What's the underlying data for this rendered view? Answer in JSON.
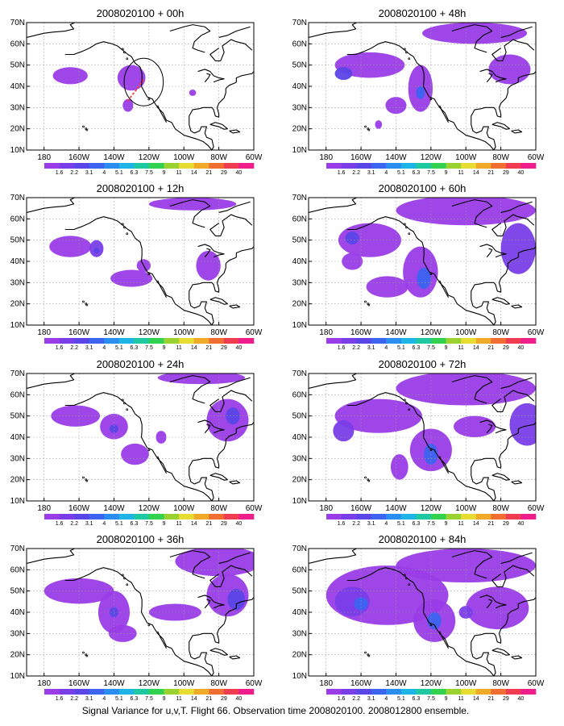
{
  "figure": {
    "caption": "Signal Variance for u,v,T. Flight 66. Observation time 2008020100. 2008012800 ensemble.",
    "lon_ticks": [
      "180",
      "160W",
      "140W",
      "120W",
      "100W",
      "80W",
      "60W"
    ],
    "lat_ticks": [
      "10N",
      "20N",
      "30N",
      "40N",
      "50N",
      "60N",
      "70N"
    ],
    "colorbar": {
      "labels": [
        "1.6",
        "2.2",
        "3.1",
        "4",
        "5.1",
        "6.3",
        "7.5",
        "9",
        "11",
        "14",
        "21",
        "29",
        "40"
      ],
      "colors": [
        "#9a3ce8",
        "#7a3ee8",
        "#5a46e8",
        "#3c64f0",
        "#2a8ef0",
        "#1eb4e6",
        "#1ec8a0",
        "#32d250",
        "#9ad232",
        "#e6dc32",
        "#f0aa28",
        "#f06e32",
        "#f03c50",
        "#f01e8c"
      ]
    },
    "colors": {
      "land_outline": "#000000",
      "grid": "#999999",
      "observation_circle": "#000000",
      "observation_track": "#ff3333"
    }
  },
  "panels": [
    {
      "title": "2008020100 + 00h",
      "blobs": [
        {
          "lon": -165,
          "lat": 45,
          "rx": 10,
          "ry": 4,
          "level": 0
        },
        {
          "lon": -130,
          "lat": 44,
          "rx": 8,
          "ry": 6,
          "level": 0
        },
        {
          "lon": -132,
          "lat": 31,
          "rx": 3,
          "ry": 3,
          "level": 0
        },
        {
          "lon": -95,
          "lat": 37,
          "rx": 2,
          "ry": 1.5,
          "level": 0
        }
      ],
      "observation": {
        "lon": -123,
        "lat": 42,
        "radius_deg": 7
      }
    },
    {
      "title": "2008020100 + 48h",
      "blobs": [
        {
          "lon": -155,
          "lat": 50,
          "rx": 20,
          "ry": 6,
          "level": 0
        },
        {
          "lon": -170,
          "lat": 46,
          "rx": 5,
          "ry": 3,
          "level": 2
        },
        {
          "lon": -126,
          "lat": 39,
          "rx": 7,
          "ry": 11,
          "level": 0
        },
        {
          "lon": -126,
          "lat": 37,
          "rx": 2.5,
          "ry": 3,
          "level": 3
        },
        {
          "lon": -140,
          "lat": 31,
          "rx": 6,
          "ry": 4,
          "level": 0
        },
        {
          "lon": -95,
          "lat": 65,
          "rx": 30,
          "ry": 5,
          "level": 0
        },
        {
          "lon": -75,
          "lat": 48,
          "rx": 12,
          "ry": 7,
          "level": 0
        },
        {
          "lon": -150,
          "lat": 22,
          "rx": 2,
          "ry": 2,
          "level": 0
        }
      ]
    },
    {
      "title": "2008020100 + 12h",
      "blobs": [
        {
          "lon": -165,
          "lat": 47,
          "rx": 12,
          "ry": 5,
          "level": 0
        },
        {
          "lon": -150,
          "lat": 46,
          "rx": 4,
          "ry": 4,
          "level": 1
        },
        {
          "lon": -150,
          "lat": 45,
          "rx": 1.5,
          "ry": 1.5,
          "level": 2
        },
        {
          "lon": -130,
          "lat": 32,
          "rx": 12,
          "ry": 4,
          "level": 0
        },
        {
          "lon": -123,
          "lat": 38,
          "rx": 4,
          "ry": 3,
          "level": 0
        },
        {
          "lon": -86,
          "lat": 38,
          "rx": 7,
          "ry": 7,
          "level": 0
        },
        {
          "lon": -95,
          "lat": 67,
          "rx": 25,
          "ry": 3,
          "level": 0
        }
      ]
    },
    {
      "title": "2008020100 + 60h",
      "blobs": [
        {
          "lon": -155,
          "lat": 50,
          "rx": 18,
          "ry": 8,
          "level": 0
        },
        {
          "lon": -165,
          "lat": 51,
          "rx": 4,
          "ry": 3,
          "level": 2
        },
        {
          "lon": -165,
          "lat": 40,
          "rx": 6,
          "ry": 4,
          "level": 0
        },
        {
          "lon": -126,
          "lat": 35,
          "rx": 10,
          "ry": 12,
          "level": 0
        },
        {
          "lon": -124,
          "lat": 32,
          "rx": 4,
          "ry": 5,
          "level": 3
        },
        {
          "lon": -145,
          "lat": 28,
          "rx": 12,
          "ry": 5,
          "level": 0
        },
        {
          "lon": -100,
          "lat": 64,
          "rx": 40,
          "ry": 7,
          "level": 0
        },
        {
          "lon": -70,
          "lat": 46,
          "rx": 10,
          "ry": 12,
          "level": 1
        }
      ]
    },
    {
      "title": "2008020100 + 24h",
      "blobs": [
        {
          "lon": -162,
          "lat": 50,
          "rx": 14,
          "ry": 5,
          "level": 0
        },
        {
          "lon": -140,
          "lat": 45,
          "rx": 8,
          "ry": 6,
          "level": 0
        },
        {
          "lon": -140,
          "lat": 44,
          "rx": 2.5,
          "ry": 2,
          "level": 2
        },
        {
          "lon": -128,
          "lat": 32,
          "rx": 8,
          "ry": 5,
          "level": 0
        },
        {
          "lon": -113,
          "lat": 40,
          "rx": 3,
          "ry": 3,
          "level": 0
        },
        {
          "lon": -75,
          "lat": 48,
          "rx": 12,
          "ry": 10,
          "level": 0
        },
        {
          "lon": -72,
          "lat": 50,
          "rx": 4,
          "ry": 4,
          "level": 2
        },
        {
          "lon": -90,
          "lat": 68,
          "rx": 25,
          "ry": 3,
          "level": 0
        }
      ]
    },
    {
      "title": "2008020100 + 72h",
      "blobs": [
        {
          "lon": -150,
          "lat": 50,
          "rx": 25,
          "ry": 8,
          "level": 0
        },
        {
          "lon": -170,
          "lat": 43,
          "rx": 6,
          "ry": 5,
          "level": 1
        },
        {
          "lon": -120,
          "lat": 34,
          "rx": 12,
          "ry": 10,
          "level": 0
        },
        {
          "lon": -120,
          "lat": 32,
          "rx": 4,
          "ry": 5,
          "level": 3
        },
        {
          "lon": -138,
          "lat": 26,
          "rx": 5,
          "ry": 6,
          "level": 0
        },
        {
          "lon": -100,
          "lat": 63,
          "rx": 40,
          "ry": 8,
          "level": 0
        },
        {
          "lon": -65,
          "lat": 46,
          "rx": 10,
          "ry": 10,
          "level": 1
        },
        {
          "lon": -95,
          "lat": 45,
          "rx": 12,
          "ry": 5,
          "level": 0
        }
      ]
    },
    {
      "title": "2008020100 + 36h",
      "blobs": [
        {
          "lon": -160,
          "lat": 50,
          "rx": 20,
          "ry": 6,
          "level": 0
        },
        {
          "lon": -140,
          "lat": 40,
          "rx": 9,
          "ry": 10,
          "level": 0
        },
        {
          "lon": -140,
          "lat": 40,
          "rx": 2.5,
          "ry": 2.5,
          "level": 2
        },
        {
          "lon": -135,
          "lat": 30,
          "rx": 8,
          "ry": 4,
          "level": 0
        },
        {
          "lon": -105,
          "lat": 40,
          "rx": 15,
          "ry": 4,
          "level": 0
        },
        {
          "lon": -75,
          "lat": 48,
          "rx": 12,
          "ry": 10,
          "level": 0
        },
        {
          "lon": -70,
          "lat": 46,
          "rx": 5,
          "ry": 5,
          "level": 2
        },
        {
          "lon": -80,
          "lat": 64,
          "rx": 25,
          "ry": 7,
          "level": 0
        }
      ]
    },
    {
      "title": "2008020100 + 84h",
      "blobs": [
        {
          "lon": -145,
          "lat": 48,
          "rx": 35,
          "ry": 14,
          "level": 0
        },
        {
          "lon": -165,
          "lat": 45,
          "rx": 10,
          "ry": 7,
          "level": 1
        },
        {
          "lon": -160,
          "lat": 44,
          "rx": 4,
          "ry": 3,
          "level": 3
        },
        {
          "lon": -118,
          "lat": 36,
          "rx": 12,
          "ry": 10,
          "level": 0
        },
        {
          "lon": -118,
          "lat": 36,
          "rx": 4,
          "ry": 4,
          "level": 3
        },
        {
          "lon": -100,
          "lat": 62,
          "rx": 40,
          "ry": 8,
          "level": 0
        },
        {
          "lon": -82,
          "lat": 42,
          "rx": 18,
          "ry": 10,
          "level": 0
        },
        {
          "lon": -100,
          "lat": 40,
          "rx": 4,
          "ry": 3,
          "level": 1
        }
      ]
    }
  ]
}
